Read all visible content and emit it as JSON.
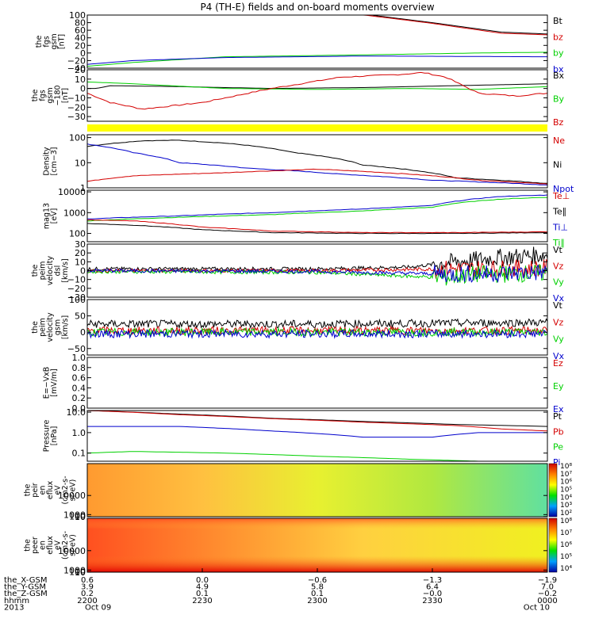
{
  "title": "P4 (TH-E) fields and on-board moments overview",
  "colors": {
    "black": "#000000",
    "red": "#d40000",
    "green": "#00d000",
    "blue": "#0000cc",
    "yellow": "#ffff00"
  },
  "chart_data": [
    {
      "type": "line",
      "ylabel": [
        "the",
        "fgs",
        "gsm",
        "[nT]"
      ],
      "yticks": [
        "100",
        "80",
        "60",
        "40",
        "20",
        "0",
        "−20",
        "−40"
      ],
      "ylim": [
        -40,
        100
      ],
      "legend": [
        {
          "name": "Bt",
          "color": "black"
        },
        {
          "name": "bz",
          "color": "red"
        },
        {
          "name": "by",
          "color": "green"
        },
        {
          "name": "bx",
          "color": "blue"
        }
      ],
      "series": [
        {
          "name": "Bt",
          "color": "black",
          "x": [
            0.0,
            0.55,
            0.75,
            0.9,
            1.0
          ],
          "y": [
            140,
            110,
            80,
            55,
            50
          ]
        },
        {
          "name": "bz",
          "color": "red",
          "x": [
            0.0,
            0.55,
            0.75,
            0.9,
            1.0
          ],
          "y": [
            135,
            108,
            78,
            52,
            48
          ]
        },
        {
          "name": "by",
          "color": "green",
          "x": [
            0.0,
            0.1,
            0.3,
            0.6,
            0.85,
            1.0
          ],
          "y": [
            -35,
            -25,
            -10,
            -5,
            0,
            2
          ]
        },
        {
          "name": "bx",
          "color": "blue",
          "x": [
            0.0,
            0.1,
            0.3,
            0.6,
            1.0
          ],
          "y": [
            -30,
            -20,
            -12,
            -8,
            -10
          ]
        }
      ]
    },
    {
      "type": "line",
      "ylabel": [
        "the",
        "fgs",
        "gsm",
        "−180",
        "[nT]"
      ],
      "yticks": [
        "20",
        "10",
        "0",
        "−10",
        "−20",
        "−30"
      ],
      "ylim": [
        -35,
        20
      ],
      "legend": [
        {
          "name": "Bx",
          "color": "black"
        },
        {
          "name": "By",
          "color": "green"
        },
        {
          "name": "Bz",
          "color": "red"
        }
      ],
      "series": [
        {
          "name": "Bx",
          "color": "black",
          "x": [
            0.0,
            0.02,
            0.05,
            0.2,
            0.4,
            0.6,
            0.8,
            1.0
          ],
          "y": [
            0,
            0,
            3,
            2,
            0,
            1,
            3,
            5
          ]
        },
        {
          "name": "By",
          "color": "green",
          "x": [
            0.0,
            0.1,
            0.3,
            0.5,
            0.7,
            0.85,
            1.0
          ],
          "y": [
            7,
            5,
            0,
            -1,
            0,
            -1,
            2
          ]
        },
        {
          "name": "Bz",
          "color": "red",
          "x": [
            0.0,
            0.05,
            0.12,
            0.25,
            0.4,
            0.55,
            0.68,
            0.73,
            0.78,
            0.85,
            0.93,
            1.0
          ],
          "y": [
            -5,
            -15,
            -22,
            -15,
            0,
            12,
            15,
            17,
            12,
            -5,
            -8,
            -5
          ]
        }
      ]
    },
    {
      "type": "bar",
      "color": "yellow",
      "ylabel": []
    },
    {
      "type": "line",
      "ylog": true,
      "ylabel": [
        "Density",
        "[cm−3]"
      ],
      "yticks": [
        "100",
        "10",
        "1"
      ],
      "ylim": [
        1,
        130
      ],
      "legend": [
        {
          "name": "Ne",
          "color": "red"
        },
        {
          "name": "Ni",
          "color": "black"
        },
        {
          "name": "Npot",
          "color": "blue"
        }
      ],
      "series": [
        {
          "name": "Ni",
          "color": "black",
          "x": [
            0.0,
            0.12,
            0.2,
            0.3,
            0.45,
            0.6,
            0.8,
            1.0
          ],
          "y": [
            45,
            75,
            78,
            60,
            25,
            8,
            2.5,
            1.5
          ]
        },
        {
          "name": "Npot",
          "color": "blue",
          "x": [
            0.0,
            0.1,
            0.2,
            0.35,
            0.55,
            0.75,
            1.0
          ],
          "y": [
            55,
            25,
            10,
            6,
            3.5,
            2,
            1.3
          ]
        },
        {
          "name": "Ne",
          "color": "red",
          "x": [
            0.0,
            0.1,
            0.3,
            0.5,
            0.7,
            0.85,
            1.0
          ],
          "y": [
            1.8,
            3,
            4,
            5.5,
            3.5,
            2,
            1.4
          ]
        }
      ]
    },
    {
      "type": "line",
      "ylog": true,
      "ylabel": [
        "mag13",
        "[eV]"
      ],
      "yticks": [
        "10000",
        "1000",
        "100"
      ],
      "ylim": [
        40,
        12000
      ],
      "legend": [
        {
          "name": "Te⊥",
          "color": "red"
        },
        {
          "name": "Te∥",
          "color": "black"
        },
        {
          "name": "Ti⊥",
          "color": "blue"
        },
        {
          "name": "Ti∥",
          "color": "green"
        }
      ],
      "series": [
        {
          "name": "Ti⊥",
          "color": "blue",
          "x": [
            0.0,
            0.2,
            0.4,
            0.6,
            0.75,
            0.8,
            0.9,
            1.0
          ],
          "y": [
            500,
            700,
            1000,
            1500,
            2200,
            3500,
            6000,
            7000
          ]
        },
        {
          "name": "Ti∥",
          "color": "green",
          "x": [
            0.0,
            0.2,
            0.4,
            0.6,
            0.75,
            0.8,
            0.9,
            1.0
          ],
          "y": [
            400,
            600,
            800,
            1200,
            1800,
            2800,
            4500,
            5500
          ]
        },
        {
          "name": "Te∥",
          "color": "black",
          "x": [
            0.0,
            0.1,
            0.25,
            0.4,
            0.6,
            0.8,
            1.0
          ],
          "y": [
            300,
            250,
            150,
            110,
            100,
            100,
            110
          ]
        },
        {
          "name": "Te⊥",
          "color": "red",
          "x": [
            0.0,
            0.1,
            0.25,
            0.4,
            0.6,
            0.8,
            1.0
          ],
          "y": [
            450,
            400,
            200,
            130,
            110,
            110,
            120
          ]
        }
      ]
    },
    {
      "type": "line",
      "ylabel": [
        "the",
        "peim",
        "velocity",
        "dsl",
        "[km/s]"
      ],
      "yticks": [
        "30",
        "20",
        "10",
        "0",
        "−10",
        "−20",
        "−30"
      ],
      "ylim": [
        -30,
        30
      ],
      "legend": [
        {
          "name": "Vt",
          "color": "black"
        },
        {
          "name": "Vz",
          "color": "red"
        },
        {
          "name": "Vy",
          "color": "green"
        },
        {
          "name": "Vx",
          "color": "blue"
        }
      ],
      "series": [
        {
          "name": "Vt",
          "color": "black",
          "x": [
            0.0,
            0.5,
            0.7,
            0.8,
            0.9,
            1.0
          ],
          "y": [
            2,
            2,
            4,
            10,
            15,
            18
          ]
        },
        {
          "name": "Vz",
          "color": "red",
          "x": [
            0.0,
            0.5,
            0.8,
            1.0
          ],
          "y": [
            0,
            0,
            2,
            3
          ]
        },
        {
          "name": "Vy",
          "color": "green",
          "x": [
            0.0,
            0.5,
            0.78,
            0.85,
            1.0
          ],
          "y": [
            -1,
            -2,
            -8,
            -4,
            -3
          ]
        },
        {
          "name": "Vx",
          "color": "blue",
          "x": [
            0.0,
            0.5,
            0.8,
            1.0
          ],
          "y": [
            0,
            -1,
            -4,
            -2
          ]
        }
      ]
    },
    {
      "type": "line",
      "ylabel": [
        "the",
        "peim",
        "velocity",
        "gsm",
        "[km/s]"
      ],
      "yticks": [
        "100",
        "50",
        "0",
        "−50"
      ],
      "ylim": [
        -70,
        100
      ],
      "legend": [
        {
          "name": "Vt",
          "color": "black"
        },
        {
          "name": "Vz",
          "color": "red"
        },
        {
          "name": "Vy",
          "color": "green"
        },
        {
          "name": "Vx",
          "color": "blue"
        }
      ],
      "series": [
        {
          "name": "Vt",
          "color": "black",
          "x": [
            0.0,
            0.5,
            1.0
          ],
          "y": [
            25,
            25,
            30
          ]
        },
        {
          "name": "Vz",
          "color": "red",
          "x": [
            0.0,
            1.0
          ],
          "y": [
            5,
            5
          ]
        },
        {
          "name": "Vy",
          "color": "green",
          "x": [
            0.0,
            1.0
          ],
          "y": [
            0,
            0
          ]
        },
        {
          "name": "Vx",
          "color": "blue",
          "x": [
            0.0,
            1.0
          ],
          "y": [
            -5,
            -5
          ]
        }
      ]
    },
    {
      "type": "line",
      "ylabel": [
        "E=−VxB",
        "[mV/m]"
      ],
      "yticks": [
        "1.0",
        "0.8",
        "0.6",
        "0.4",
        "0.2",
        "0.0"
      ],
      "ylim": [
        0,
        1
      ],
      "legend": [
        {
          "name": "Ez",
          "color": "red"
        },
        {
          "name": "Ey",
          "color": "green"
        },
        {
          "name": "Ex",
          "color": "blue"
        }
      ],
      "series": []
    },
    {
      "type": "line",
      "ylog": true,
      "ylabel": [
        "Pressure",
        "[nPa]"
      ],
      "yticks": [
        "10.0",
        "1.0",
        "0.1"
      ],
      "ylim": [
        0.04,
        12
      ],
      "legend": [
        {
          "name": "Pt",
          "color": "black"
        },
        {
          "name": "Pb",
          "color": "red"
        },
        {
          "name": "Pe",
          "color": "green"
        },
        {
          "name": "Pi",
          "color": "blue"
        }
      ],
      "series": [
        {
          "name": "Pt",
          "color": "black",
          "x": [
            0.0,
            0.2,
            0.4,
            0.6,
            0.8,
            1.0
          ],
          "y": [
            12,
            8,
            5,
            3.5,
            2.5,
            2
          ]
        },
        {
          "name": "Pb",
          "color": "red",
          "x": [
            0.0,
            0.2,
            0.4,
            0.6,
            0.8,
            0.9,
            1.0
          ],
          "y": [
            12,
            7.5,
            4.8,
            3.2,
            2.2,
            1.5,
            1.2
          ]
        },
        {
          "name": "Pi",
          "color": "blue",
          "x": [
            0.0,
            0.2,
            0.4,
            0.6,
            0.75,
            0.85,
            1.0
          ],
          "y": [
            2,
            2,
            1.2,
            0.6,
            0.6,
            1,
            1
          ]
        },
        {
          "name": "Pe",
          "color": "green",
          "x": [
            0.0,
            0.1,
            0.3,
            0.5,
            0.7,
            0.85,
            1.0
          ],
          "y": [
            0.1,
            0.12,
            0.1,
            0.07,
            0.05,
            0.04,
            0.04
          ]
        }
      ]
    },
    {
      "type": "heatmap",
      "ylabel": [
        "the",
        "peir",
        "en",
        "eflux",
        "eV",
        "(cm2-s-",
        "sr-eV)"
      ],
      "yticks": [
        "10000",
        "1000",
        "100",
        "10"
      ],
      "ylim": [
        6,
        25000
      ],
      "colorbar": [
        "10⁸",
        "10⁷",
        "10⁶",
        "10⁵",
        "10⁴",
        "10³",
        "10²"
      ]
    },
    {
      "type": "heatmap",
      "ylabel": [
        "the",
        "peer",
        "en",
        "eflux",
        "eV",
        "(cm2-s-",
        "sr-eV)"
      ],
      "yticks": [
        "10000",
        "1000",
        "100",
        "10"
      ],
      "ylim": [
        6,
        25000
      ],
      "colorbar": [
        "10⁸",
        "10⁷",
        "10⁶",
        "10⁵",
        "10⁴"
      ]
    }
  ],
  "xaxis": {
    "row_labels": [
      "the_X-GSM",
      "the_Y-GSM",
      "the_Z-GSM",
      "hhmm",
      "2013"
    ],
    "ticks": [
      {
        "values": [
          "0.6",
          "3.9",
          "0.2",
          "2200",
          "Oct 09"
        ]
      },
      {
        "values": [
          "0.0",
          "4.9",
          "0.1",
          "2230",
          ""
        ]
      },
      {
        "values": [
          "−0.6",
          "5.8",
          "0.1",
          "2300",
          ""
        ]
      },
      {
        "values": [
          "−1.3",
          "6.4",
          "−0.0",
          "2330",
          ""
        ]
      },
      {
        "values": [
          "−1.9",
          "7.0",
          "−0.2",
          "0000",
          "Oct 10"
        ]
      }
    ]
  }
}
